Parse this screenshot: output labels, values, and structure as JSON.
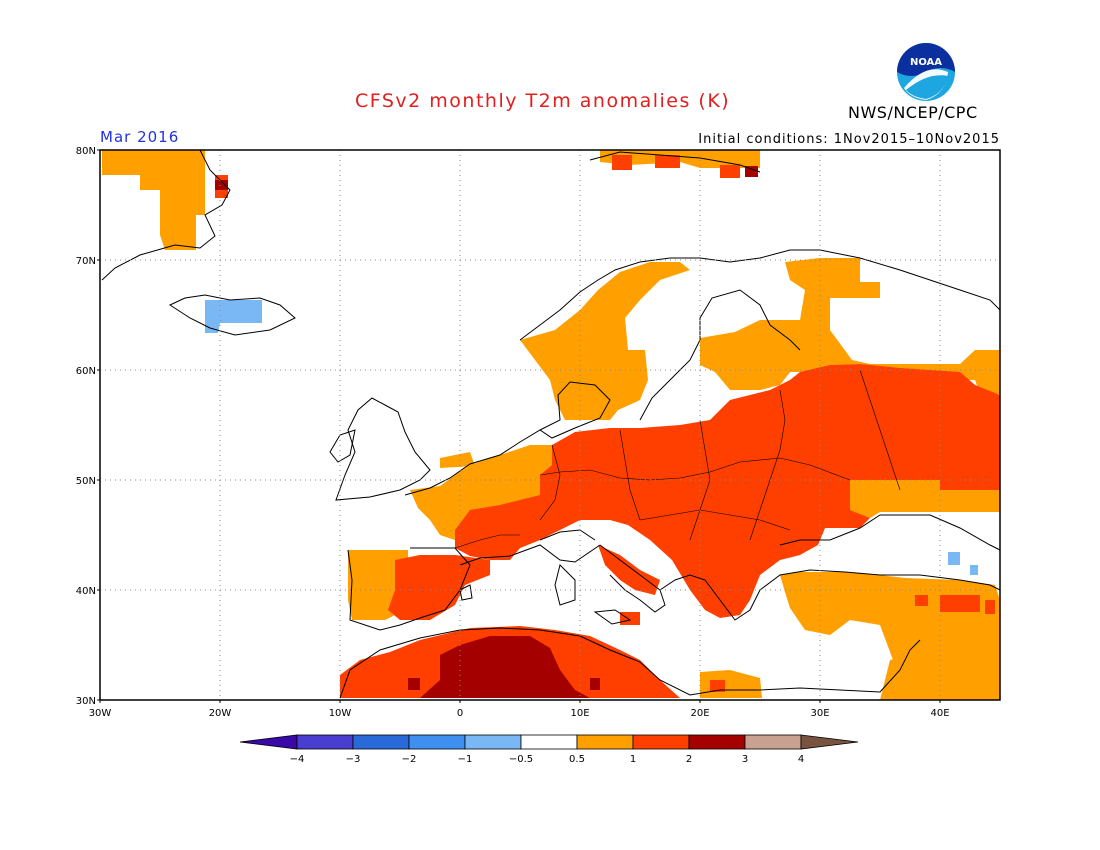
{
  "title": "CFSv2 monthly T2m anomalies (K)",
  "agency": "NWS/NCEP/CPC",
  "logo_text": "NOAA",
  "valid_month": "Mar 2016",
  "initial_conditions": "Initial conditions: 1Nov2015–10Nov2015",
  "map": {
    "lon_range": [
      -30,
      45
    ],
    "lat_range": [
      30,
      80
    ],
    "lat_labels": [
      "80N",
      "70N",
      "60N",
      "50N",
      "40N",
      "30N"
    ],
    "lon_labels": [
      "30W",
      "20W",
      "10W",
      "0",
      "10E",
      "20E",
      "30E",
      "40E"
    ]
  },
  "legend": {
    "colors": [
      "#3a0aa8",
      "#4a3ed0",
      "#2a6ad8",
      "#3f8ff0",
      "#7ab8f5",
      "#ffffff",
      "#ffa000",
      "#ff3f00",
      "#a50000",
      "#c8a190",
      "#7a5240"
    ],
    "labels": [
      "−4",
      "−3",
      "−2",
      "−1",
      "−0.5",
      "0.5",
      "1",
      "2",
      "3",
      "4"
    ]
  }
}
